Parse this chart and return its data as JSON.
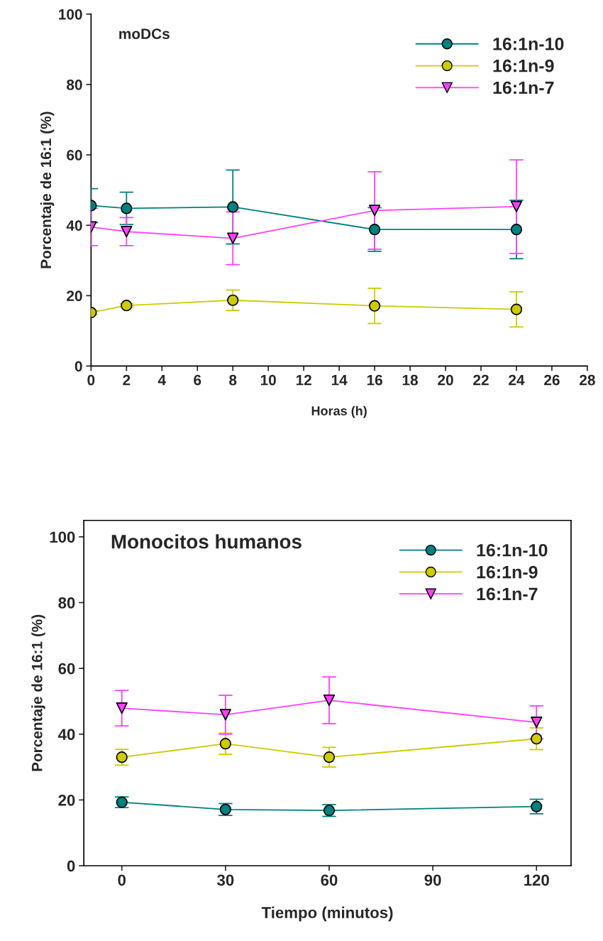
{
  "chart_data": [
    {
      "type": "line",
      "title": "moDCs",
      "xlabel": "Horas (h)",
      "ylabel": "Porcentaje de 16:1 (%)",
      "x": [
        0,
        2,
        8,
        16,
        24
      ],
      "xlim": [
        0,
        28
      ],
      "xticks": [
        0,
        2,
        4,
        6,
        8,
        10,
        12,
        14,
        16,
        18,
        20,
        22,
        24,
        26,
        28
      ],
      "ylim": [
        0,
        100
      ],
      "yticks": [
        0,
        20,
        40,
        60,
        80,
        100
      ],
      "legend": "top right",
      "grid": false,
      "series": [
        {
          "name": "16:1n-10",
          "color": "#008080",
          "marker": "circle",
          "values": [
            45.6,
            44.8,
            45.2,
            38.8,
            38.8
          ],
          "errors": [
            4.8,
            4.6,
            10.5,
            6.2,
            8.3
          ]
        },
        {
          "name": "16:1n-9",
          "color": "#cccc00",
          "marker": "circle",
          "values": [
            15.2,
            17.2,
            18.7,
            17.1,
            16.1
          ],
          "errors": [
            0.5,
            0.5,
            2.9,
            5.0,
            5.0
          ]
        },
        {
          "name": "16:1n-7",
          "color": "#ff40ff",
          "marker": "triangle",
          "values": [
            39.5,
            38.2,
            36.3,
            44.2,
            45.3
          ],
          "errors": [
            5.3,
            4.0,
            7.5,
            11.0,
            13.3
          ]
        }
      ]
    },
    {
      "type": "line",
      "title": "Monocitos humanos",
      "xlabel": "Tiempo (minutos)",
      "ylabel": "Porcentaje de 16:1 (%)",
      "x": [
        0,
        30,
        60,
        120
      ],
      "xlim": [
        -11,
        130
      ],
      "xticks": [
        0,
        30,
        60,
        90,
        120
      ],
      "ylim": [
        0,
        105
      ],
      "yticks": [
        0,
        20,
        40,
        60,
        80,
        100
      ],
      "legend": "top right",
      "grid": false,
      "series": [
        {
          "name": "16:1n-10",
          "color": "#008080",
          "marker": "circle",
          "values": [
            19.3,
            17.1,
            16.8,
            18.0
          ],
          "errors": [
            1.6,
            1.8,
            1.8,
            2.2
          ]
        },
        {
          "name": "16:1n-9",
          "color": "#cccc00",
          "marker": "circle",
          "values": [
            33.0,
            37.1,
            33.0,
            38.6
          ],
          "errors": [
            2.4,
            3.2,
            3.0,
            3.3
          ]
        },
        {
          "name": "16:1n-7",
          "color": "#ff40ff",
          "marker": "triangle",
          "values": [
            47.9,
            45.9,
            50.3,
            43.6
          ],
          "errors": [
            5.4,
            5.9,
            7.1,
            5.0
          ]
        }
      ]
    }
  ]
}
